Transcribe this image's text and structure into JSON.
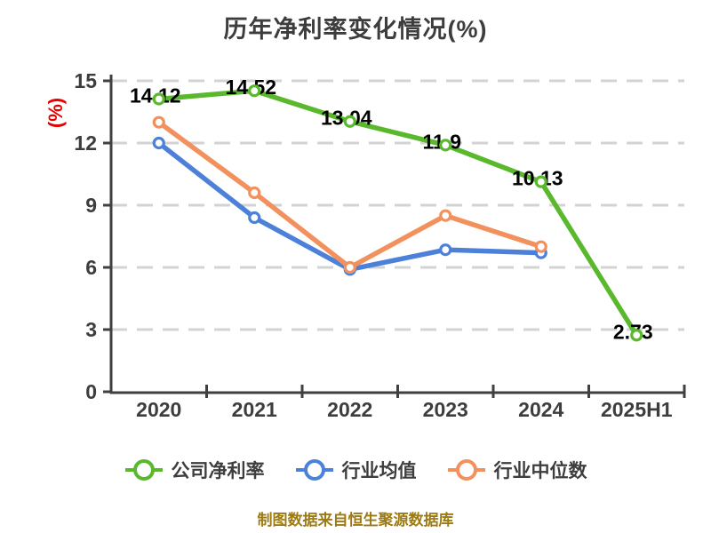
{
  "title": "历年净利率变化情况(%)",
  "caption": "制图数据来自恒生聚源数据库",
  "caption_color": "#9c7a14",
  "chart_data": {
    "type": "line",
    "title": "历年净利率变化情况(%)",
    "categories": [
      "2020",
      "2021",
      "2022",
      "2023",
      "2024",
      "2025H1"
    ],
    "series": [
      {
        "name": "公司净利率",
        "color": "#5ab82d",
        "values": [
          14.12,
          14.52,
          13.04,
          11.9,
          10.13,
          2.73
        ],
        "labels": [
          "14.12",
          "14.52",
          "13.04",
          "11.9",
          "10.13",
          "2.73"
        ]
      },
      {
        "name": "行业均值",
        "color": "#4d80d9",
        "values": [
          12.0,
          8.4,
          5.9,
          6.85,
          6.7,
          null
        ]
      },
      {
        "name": "行业中位数",
        "color": "#f2915e",
        "values": [
          13.0,
          9.6,
          6.0,
          8.5,
          7.0,
          null
        ]
      }
    ],
    "ylabel": "(%)",
    "ylabel_color": "#e60000",
    "yticks": [
      0,
      3,
      6,
      9,
      12,
      15
    ],
    "ylim": [
      0,
      15
    ],
    "grid": true,
    "grid_style": "dashed",
    "legend_position": "bottom",
    "marker": "circle-white-fill"
  }
}
